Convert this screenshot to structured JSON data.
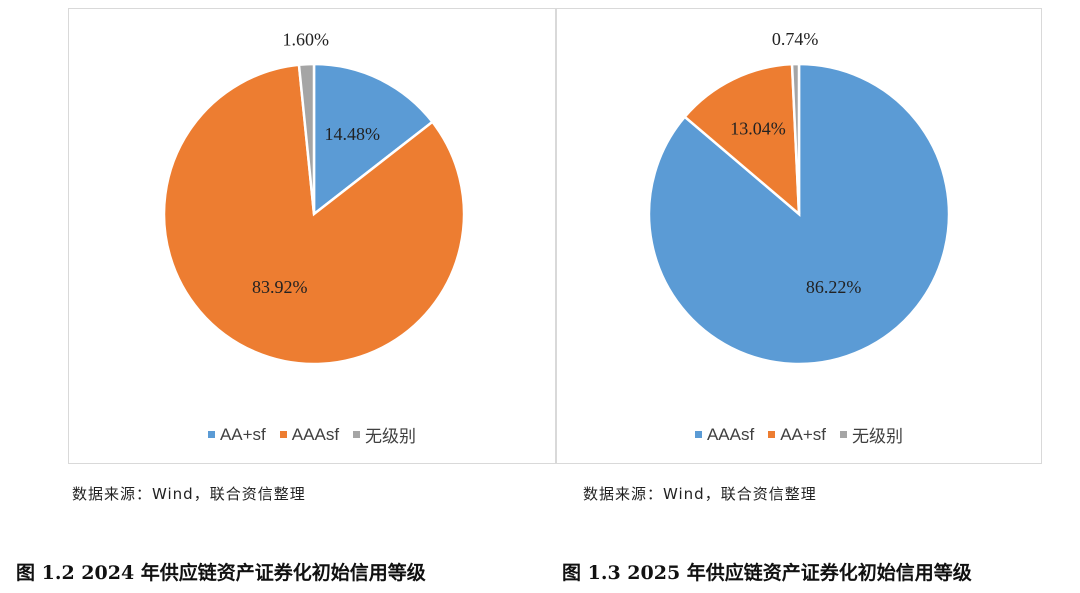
{
  "chart_data": [
    {
      "type": "pie",
      "caption": "图 1.2 2024 年供应链资产证券化初始信用等级",
      "source": "数据来源：Wind，联合资信整理",
      "slices": [
        {
          "name": "AA+sf",
          "value": 14.48,
          "label": "14.48%",
          "color": "#5b9bd5"
        },
        {
          "name": "AAAsf",
          "value": 83.92,
          "label": "83.92%",
          "color": "#ed7d31"
        },
        {
          "name": "无级别",
          "value": 1.6,
          "label": "1.60%",
          "color": "#a5a5a5"
        }
      ],
      "legend": [
        "AA+sf",
        "AAAsf",
        "无级别"
      ],
      "legend_position": "bottom"
    },
    {
      "type": "pie",
      "caption": "图 1.3 2025 年供应链资产证券化初始信用等级",
      "source": "数据来源：Wind，联合资信整理",
      "slices": [
        {
          "name": "AAAsf",
          "value": 86.22,
          "label": "86.22%",
          "color": "#5b9bd5"
        },
        {
          "name": "AA+sf",
          "value": 13.04,
          "label": "13.04%",
          "color": "#ed7d31"
        },
        {
          "name": "无级别",
          "value": 0.74,
          "label": "0.74%",
          "color": "#a5a5a5"
        }
      ],
      "legend": [
        "AAAsf",
        "AA+sf",
        "无级别"
      ],
      "legend_position": "bottom"
    }
  ]
}
